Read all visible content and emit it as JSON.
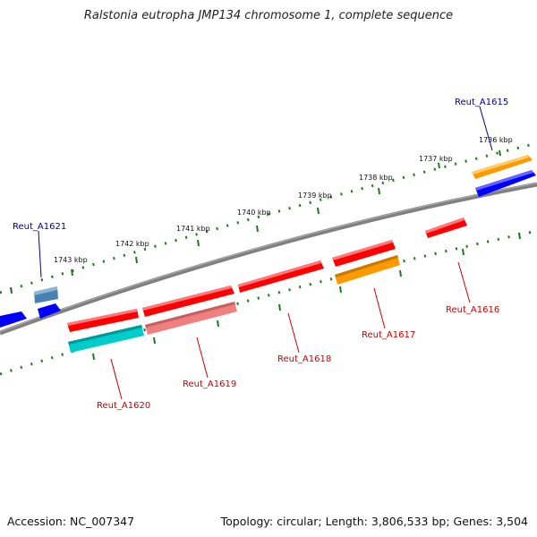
{
  "title": "Ralstonia eutropha JMP134 chromosome 1, complete sequence",
  "accession": "Accession: NC_007347",
  "summary": "Topology: circular; Length: 3,806,533 bp; Genes: 3,504",
  "colors": {
    "backbone": "#808080",
    "tick": "#1f7a1f",
    "gene_red": "#ff0000",
    "gene_blue": "#0000ff",
    "gene_steelblue": "#4682b4",
    "gene_orange": "#ff9900",
    "gene_pink": "#f08080",
    "gene_cyan": "#00cccc",
    "label_forward": "#00008b",
    "label_reverse": "#cc0000"
  },
  "kbp_labels": [
    "1736 kbp",
    "1737 kbp",
    "1738 kbp",
    "1739 kbp",
    "1740 kbp",
    "1741 kbp",
    "1742 kbp",
    "1743 kbp"
  ],
  "gene_labels": {
    "forward": [
      "Reut_A1615",
      "Reut_A1621"
    ],
    "reverse": [
      "Reut_A1616",
      "Reut_A1617",
      "Reut_A1618",
      "Reut_A1619",
      "Reut_A1620"
    ]
  }
}
